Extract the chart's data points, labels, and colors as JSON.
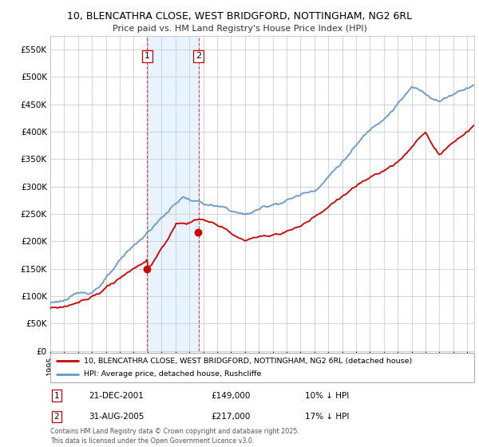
{
  "title1": "10, BLENCATHRA CLOSE, WEST BRIDGFORD, NOTTINGHAM, NG2 6RL",
  "title2": "Price paid vs. HM Land Registry's House Price Index (HPI)",
  "background_color": "#ffffff",
  "plot_bg_color": "#ffffff",
  "grid_color": "#cccccc",
  "hpi_color": "#6699cc",
  "price_color": "#cc0000",
  "sale1_date": "21-DEC-2001",
  "sale1_price": 149000,
  "sale2_date": "31-AUG-2005",
  "sale2_price": 217000,
  "sale1_hpi_diff": "10% ↓ HPI",
  "sale2_hpi_diff": "17% ↓ HPI",
  "legend_label1": "10, BLENCATHRA CLOSE, WEST BRIDGFORD, NOTTINGHAM, NG2 6RL (detached house)",
  "legend_label2": "HPI: Average price, detached house, Rushcliffe",
  "footnote": "Contains HM Land Registry data © Crown copyright and database right 2025.\nThis data is licensed under the Open Government Licence v3.0.",
  "ylim": [
    0,
    575000
  ],
  "yticks": [
    0,
    50000,
    100000,
    150000,
    200000,
    250000,
    300000,
    350000,
    400000,
    450000,
    500000,
    550000
  ],
  "sale1_x": 2001.97,
  "sale2_x": 2005.66,
  "span_color": "#ddeeff",
  "vline_color": "#cc0000"
}
